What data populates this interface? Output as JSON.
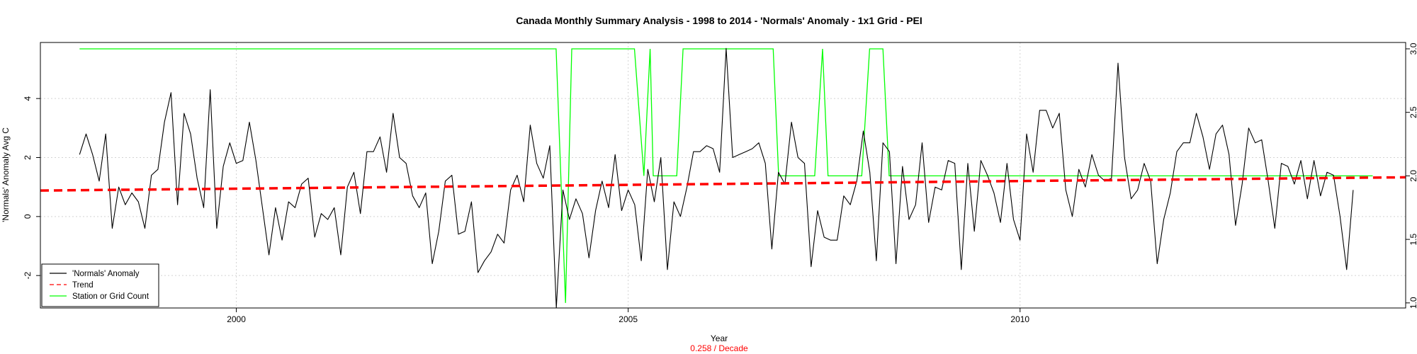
{
  "chart_data": {
    "type": "line",
    "title": "Canada Monthly Summary Analysis - 1998 to 2014 - 'Normals' Anomaly - 1x1 Grid - PEI",
    "xlabel": "Year",
    "ylabel": "'Normals' Anomaly Avg C",
    "trend_label": "0.258  / Decade",
    "xlim": [
      1997.5,
      2014.92
    ],
    "ylim_left": [
      -3.1,
      5.9
    ],
    "ylim_right": [
      0.96,
      3.05
    ],
    "x_ticks": [
      2000,
      2005,
      2010
    ],
    "x_tick_labels": [
      "2000",
      "2005",
      "2010"
    ],
    "y_left_ticks": [
      -2,
      0,
      2,
      4
    ],
    "y_left_tick_labels": [
      "-2",
      "0",
      "2",
      "4"
    ],
    "y_right_ticks": [
      1.0,
      1.5,
      2.0,
      2.5,
      3.0
    ],
    "y_right_tick_labels": [
      "1.0",
      "1.5",
      "2.0",
      "2.5",
      "3.0"
    ],
    "grid": true,
    "legend_position": "bottom-left",
    "colors": {
      "anomaly": "#000000",
      "trend": "#ff0000",
      "count": "#00ff00",
      "grid": "#d3d3d3"
    },
    "series": [
      {
        "name": "'Normals' Anomaly",
        "axis": "left",
        "start": 1998.0,
        "step": 0.083333,
        "values": [
          2.1,
          2.8,
          2.1,
          1.2,
          2.8,
          -0.4,
          1.0,
          0.4,
          0.8,
          0.5,
          -0.4,
          1.4,
          1.6,
          3.2,
          4.2,
          0.4,
          3.5,
          2.8,
          1.3,
          0.3,
          4.3,
          -0.4,
          1.7,
          2.5,
          1.8,
          1.9,
          3.2,
          1.9,
          0.3,
          -1.3,
          0.3,
          -0.8,
          0.5,
          0.3,
          1.1,
          1.3,
          -0.7,
          0.1,
          -0.1,
          0.3,
          -1.3,
          1.0,
          1.5,
          0.1,
          2.2,
          2.2,
          2.7,
          1.5,
          3.5,
          2.0,
          1.8,
          0.7,
          0.3,
          0.8,
          -1.6,
          -0.5,
          1.2,
          1.4,
          -0.6,
          -0.5,
          0.5,
          -1.9,
          -1.5,
          -1.2,
          -0.6,
          -0.9,
          0.9,
          1.4,
          0.5,
          3.1,
          1.8,
          1.3,
          2.4,
          -3.1,
          0.9,
          -0.1,
          0.6,
          0.1,
          -1.4,
          0.2,
          1.2,
          0.3,
          2.1,
          0.2,
          0.9,
          0.4,
          -1.5,
          1.6,
          0.5,
          2.0,
          -1.8,
          0.5,
          0.0,
          1.0,
          2.2,
          2.2,
          2.4,
          2.3,
          1.5,
          5.7,
          2.0,
          2.1,
          2.2,
          2.3,
          2.5,
          1.8,
          -1.1,
          1.5,
          1.1,
          3.2,
          2.0,
          1.8,
          -1.7,
          0.2,
          -0.7,
          -0.8,
          -0.8,
          0.7,
          0.4,
          1.2,
          2.9,
          1.5,
          -1.5,
          2.5,
          2.2,
          -1.6,
          1.7,
          -0.1,
          0.4,
          2.5,
          -0.2,
          1.0,
          0.9,
          1.9,
          1.8,
          -1.8,
          1.8,
          -0.5,
          1.9,
          1.4,
          0.8,
          -0.2,
          1.8,
          -0.1,
          -0.8,
          2.8,
          1.5,
          3.6,
          3.6,
          3.0,
          3.5,
          0.9,
          0.0,
          1.6,
          1.0,
          2.1,
          1.4,
          1.2,
          1.3,
          5.2,
          2.0,
          0.6,
          0.9,
          1.8,
          1.2,
          -1.6,
          -0.1,
          0.8,
          2.2,
          2.5,
          2.5,
          3.5,
          2.7,
          1.6,
          2.8,
          3.1,
          2.1,
          -0.3,
          1.1,
          3.0,
          2.5,
          2.6,
          1.2,
          -0.4,
          1.8,
          1.7,
          1.1,
          1.9,
          0.6,
          1.9,
          0.7,
          1.5,
          1.4,
          0.0,
          -1.8,
          0.9
        ]
      },
      {
        "name": "Trend",
        "axis": "left",
        "x": [
          1997.5,
          2014.92
        ],
        "values": [
          0.88,
          1.33
        ]
      },
      {
        "name": "Station or Grid Count",
        "axis": "right",
        "x": [
          1998.0,
          2004.08,
          2004.2,
          2004.28,
          2004.37,
          2005.08,
          2005.2,
          2005.28,
          2005.32,
          2005.38,
          2005.62,
          2005.7,
          2006.85,
          2006.92,
          2007.38,
          2007.48,
          2007.55,
          2007.98,
          2008.08,
          2008.25,
          2008.33,
          2014.5
        ],
        "values": [
          3.0,
          3.0,
          1.0,
          3.0,
          3.0,
          3.0,
          2.0,
          3.0,
          2.0,
          2.0,
          2.0,
          3.0,
          3.0,
          2.0,
          2.0,
          3.0,
          2.0,
          2.0,
          3.0,
          3.0,
          2.0,
          2.0
        ]
      }
    ]
  }
}
